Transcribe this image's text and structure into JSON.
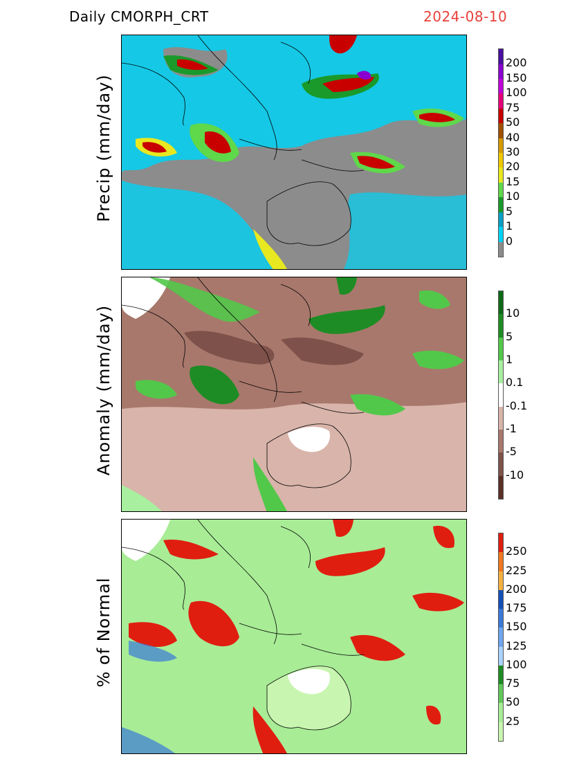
{
  "header": {
    "title": "Daily  CMORPH_CRT",
    "date": "2024-08-10"
  },
  "panels": [
    {
      "id": "precip",
      "ylabel": "Precip  (mm/day)",
      "colorbar": {
        "labels": [
          "0",
          "1",
          "5",
          "10",
          "15",
          "20",
          "30",
          "40",
          "50",
          "75",
          "100",
          "150",
          "200"
        ],
        "colors": [
          "#8c8c8c",
          "#00d2f5",
          "#0a9fc4",
          "#1a9a2a",
          "#5fd84a",
          "#e8e820",
          "#f0c800",
          "#d49a00",
          "#a05000",
          "#c80000",
          "#e6007a",
          "#c000d8",
          "#8a00d0",
          "#4a10a0"
        ]
      }
    },
    {
      "id": "anomaly",
      "ylabel": "Anomaly  (mm/day)",
      "colorbar": {
        "labels": [
          "-10",
          "-5",
          "-1",
          "-0.1",
          "0.1",
          "1",
          "5",
          "10"
        ],
        "colors": [
          "#5a3028",
          "#7e524a",
          "#a8786c",
          "#d8b4aa",
          "#ffffff",
          "#a8f0a0",
          "#52c84a",
          "#1e8c24",
          "#0f6a18"
        ]
      }
    },
    {
      "id": "pct",
      "ylabel": "%  of  Normal",
      "colorbar": {
        "labels": [
          "25",
          "50",
          "75",
          "100",
          "125",
          "150",
          "175",
          "200",
          "225",
          "250"
        ],
        "colors": [
          "#c8f5b0",
          "#a8ec96",
          "#62c85a",
          "#1e8c24",
          "#aad2ff",
          "#6ea6f0",
          "#3a7ad8",
          "#1450b8",
          "#f4b040",
          "#f07820",
          "#e01e10"
        ]
      }
    }
  ]
}
